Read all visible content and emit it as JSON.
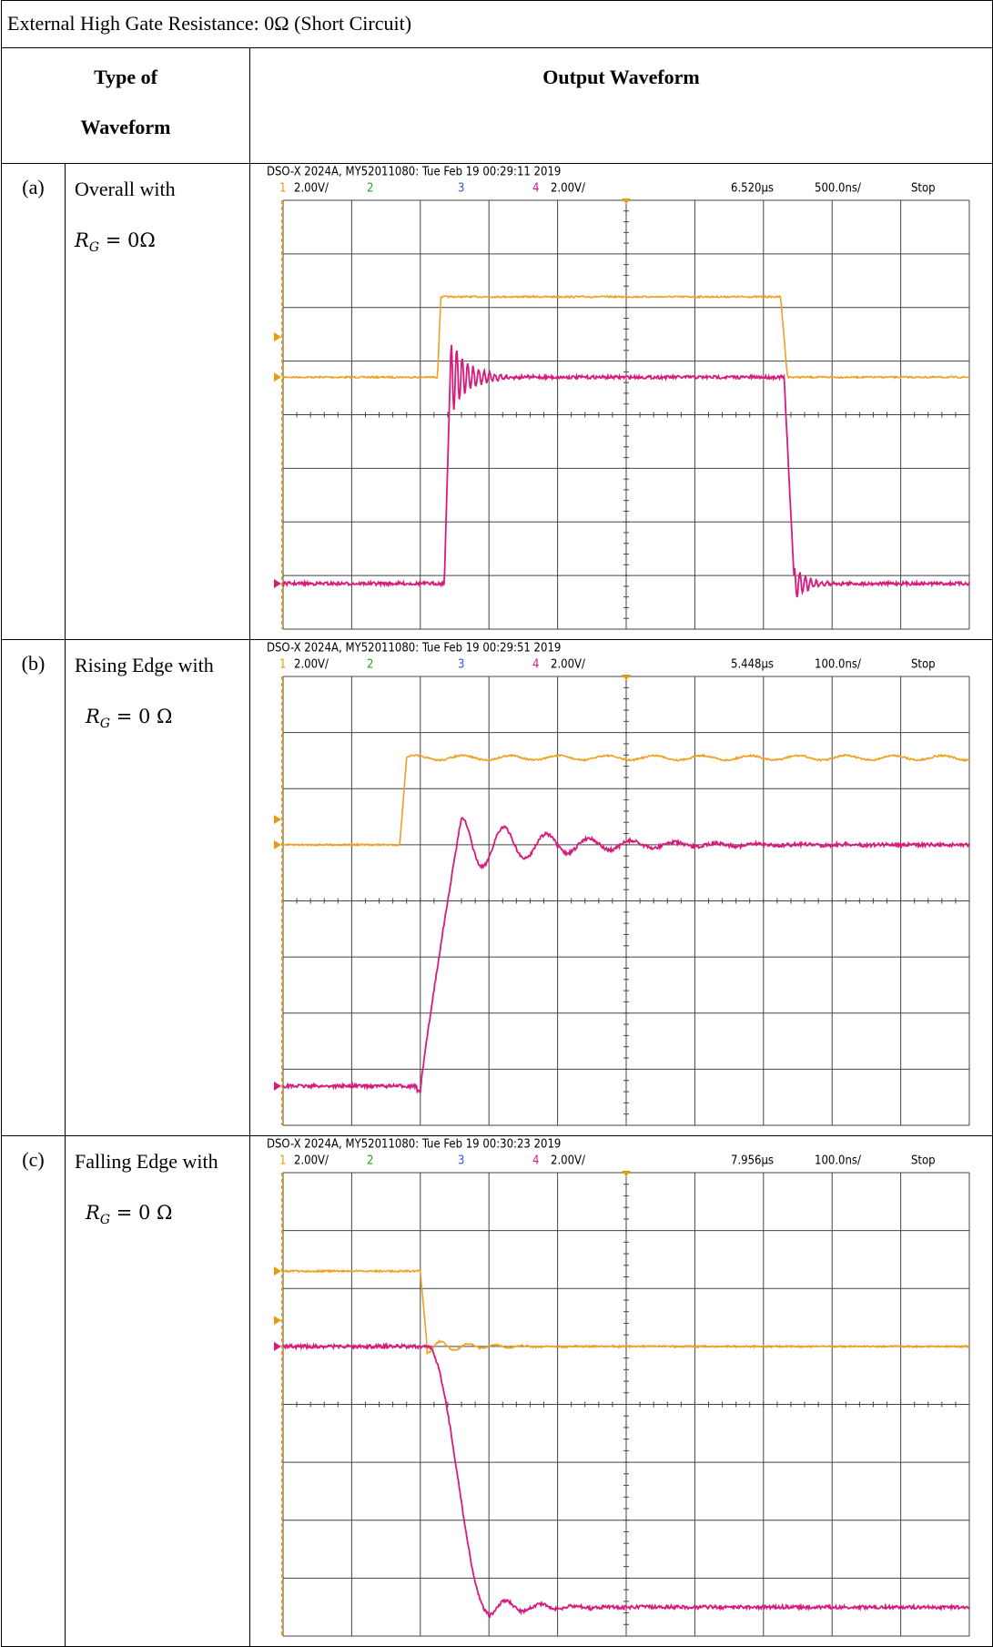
{
  "header": {
    "title": "External High Gate Resistance: 0Ω (Short Circuit)"
  },
  "table": {
    "columns": [
      "Type of Waveform",
      "Output Waveform"
    ],
    "rows": [
      {
        "label": "(a)",
        "type": "Overall with",
        "symbol": "R",
        "subscript": "G",
        "value": "= 0Ω",
        "scope": {
          "header": "DSO-X 2024A, MY52011080: Tue Feb 19 00:29:11 2019",
          "ch1": "1",
          "ch1_scale": "2.00V/",
          "ch2": "2",
          "ch3": "3",
          "ch4": "4",
          "ch4_scale": "2.00V/",
          "delay": "6.520µs",
          "timebase": "500.0ns/",
          "status": "Stop"
        }
      },
      {
        "label": "(b)",
        "type": "Rising Edge with",
        "symbol": "R",
        "subscript": "G",
        "value": "= 0 Ω",
        "scope": {
          "header": "DSO-X 2024A, MY52011080: Tue Feb 19 00:29:51 2019",
          "ch1": "1",
          "ch1_scale": "2.00V/",
          "ch2": "2",
          "ch3": "3",
          "ch4": "4",
          "ch4_scale": "2.00V/",
          "delay": "5.448µs",
          "timebase": "100.0ns/",
          "status": "Stop"
        }
      },
      {
        "label": "(c)",
        "type": "Falling Edge with",
        "symbol": "R",
        "subscript": "G",
        "value": "= 0 Ω",
        "scope": {
          "header": "DSO-X 2024A, MY52011080: Tue Feb 19 00:30:23 2019",
          "ch1": "1",
          "ch1_scale": "2.00V/",
          "ch2": "2",
          "ch3": "3",
          "ch4": "4",
          "ch4_scale": "2.00V/",
          "delay": "7.956µs",
          "timebase": "100.0ns/",
          "status": "Stop"
        }
      }
    ]
  }
}
